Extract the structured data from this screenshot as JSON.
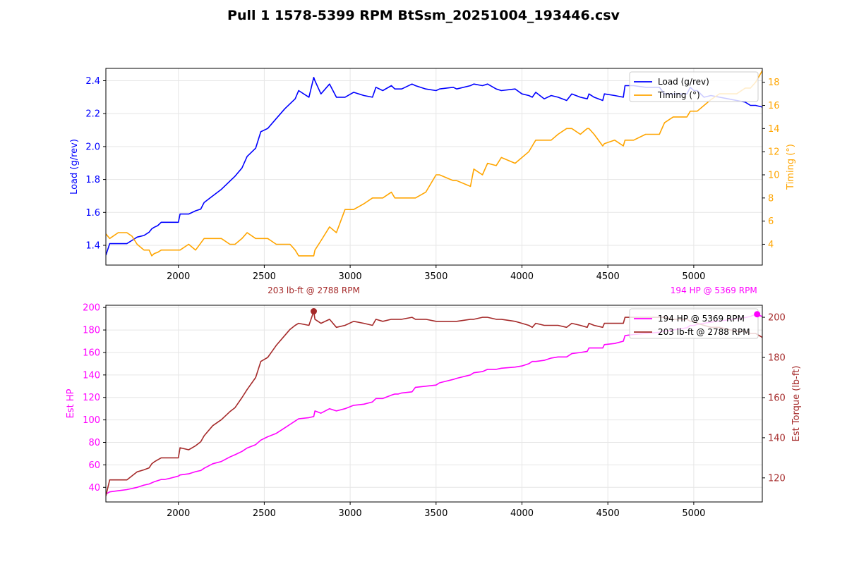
{
  "figure": {
    "title": "Pull 1 1578-5399 RPM BtSsm_20251004_193446.csv"
  },
  "colors": {
    "load": "#0000ff",
    "timing": "#ffa500",
    "hp": "#ff00ff",
    "torque": "#a52a2a",
    "grid": "#e6e6e6"
  },
  "chart_data": [
    {
      "type": "line",
      "xlim": [
        1578,
        5399
      ],
      "x_ticks": [
        2000,
        2500,
        3000,
        3500,
        4000,
        4500,
        5000
      ],
      "grid": true,
      "legend_position": "upper right",
      "left_axis": {
        "label": "Load (g/rev)",
        "ylim": [
          1.28,
          2.475
        ],
        "ticks": [
          1.4,
          1.6,
          1.8,
          2.0,
          2.2,
          2.4
        ],
        "decimals": 1
      },
      "right_axis": {
        "label": "Timing (°)",
        "ylim": [
          2.2,
          19.2
        ],
        "ticks": [
          4,
          6,
          8,
          10,
          12,
          14,
          16,
          18
        ],
        "decimals": 0
      },
      "series": [
        {
          "name": "Load (g/rev)",
          "axis": "left",
          "color": "blue",
          "x": [
            1578,
            1600,
            1650,
            1700,
            1730,
            1760,
            1800,
            1830,
            1845,
            1860,
            1880,
            1900,
            1920,
            1950,
            2000,
            2010,
            2060,
            2100,
            2130,
            2150,
            2200,
            2250,
            2300,
            2330,
            2370,
            2400,
            2450,
            2480,
            2520,
            2570,
            2620,
            2650,
            2680,
            2700,
            2760,
            2788,
            2795,
            2830,
            2880,
            2920,
            2970,
            3020,
            3080,
            3130,
            3150,
            3190,
            3240,
            3260,
            3280,
            3300,
            3360,
            3380,
            3440,
            3500,
            3520,
            3600,
            3620,
            3700,
            3720,
            3770,
            3800,
            3850,
            3880,
            3960,
            4000,
            4040,
            4060,
            4080,
            4130,
            4170,
            4210,
            4260,
            4290,
            4340,
            4380,
            4390,
            4420,
            4470,
            4480,
            4540,
            4590,
            4600,
            4650,
            4720,
            4800,
            4830,
            4880,
            4960,
            4980,
            5000,
            5020,
            5060,
            5100,
            5150,
            5200,
            5250,
            5300,
            5330,
            5360,
            5399
          ],
          "y": [
            1.34,
            1.41,
            1.41,
            1.41,
            1.43,
            1.45,
            1.46,
            1.48,
            1.5,
            1.51,
            1.52,
            1.54,
            1.54,
            1.54,
            1.54,
            1.59,
            1.59,
            1.61,
            1.62,
            1.66,
            1.7,
            1.74,
            1.79,
            1.82,
            1.87,
            1.94,
            1.99,
            2.09,
            2.11,
            2.17,
            2.23,
            2.26,
            2.29,
            2.34,
            2.3,
            2.42,
            2.4,
            2.32,
            2.38,
            2.3,
            2.3,
            2.33,
            2.31,
            2.3,
            2.36,
            2.34,
            2.37,
            2.35,
            2.35,
            2.35,
            2.38,
            2.37,
            2.35,
            2.34,
            2.35,
            2.36,
            2.35,
            2.37,
            2.38,
            2.37,
            2.38,
            2.35,
            2.34,
            2.35,
            2.32,
            2.31,
            2.3,
            2.33,
            2.29,
            2.31,
            2.3,
            2.28,
            2.32,
            2.3,
            2.29,
            2.32,
            2.3,
            2.28,
            2.32,
            2.31,
            2.3,
            2.37,
            2.37,
            2.36,
            2.36,
            2.32,
            2.32,
            2.32,
            2.36,
            2.34,
            2.34,
            2.3,
            2.31,
            2.3,
            2.29,
            2.28,
            2.27,
            2.25,
            2.25,
            2.24
          ]
        },
        {
          "name": "Timing (°)",
          "axis": "right",
          "color": "orange",
          "x": [
            1578,
            1600,
            1650,
            1700,
            1730,
            1760,
            1800,
            1830,
            1845,
            1860,
            1880,
            1900,
            1920,
            1950,
            2000,
            2010,
            2060,
            2100,
            2130,
            2150,
            2200,
            2250,
            2300,
            2330,
            2370,
            2400,
            2450,
            2480,
            2520,
            2570,
            2620,
            2650,
            2680,
            2700,
            2760,
            2788,
            2795,
            2830,
            2880,
            2920,
            2970,
            3020,
            3080,
            3130,
            3150,
            3190,
            3240,
            3260,
            3280,
            3300,
            3360,
            3380,
            3440,
            3500,
            3520,
            3600,
            3620,
            3700,
            3720,
            3770,
            3800,
            3850,
            3880,
            3960,
            4000,
            4040,
            4060,
            4080,
            4130,
            4170,
            4210,
            4260,
            4290,
            4340,
            4380,
            4390,
            4420,
            4470,
            4480,
            4540,
            4590,
            4600,
            4650,
            4720,
            4800,
            4830,
            4880,
            4960,
            4980,
            5000,
            5020,
            5060,
            5100,
            5150,
            5200,
            5250,
            5300,
            5330,
            5360,
            5399
          ],
          "y": [
            4.9,
            4.5,
            5.0,
            5.0,
            4.7,
            4.0,
            3.5,
            3.5,
            3.0,
            3.2,
            3.3,
            3.5,
            3.5,
            3.5,
            3.5,
            3.5,
            4.0,
            3.5,
            4.1,
            4.5,
            4.5,
            4.5,
            4.0,
            4.0,
            4.5,
            5.0,
            4.5,
            4.5,
            4.5,
            4.0,
            4.0,
            4.0,
            3.5,
            3.0,
            3.0,
            3.0,
            3.5,
            4.3,
            5.5,
            5.0,
            7.0,
            7.0,
            7.5,
            8.0,
            8.0,
            8.0,
            8.5,
            8.0,
            8.0,
            8.0,
            8.0,
            8.0,
            8.5,
            10.0,
            10.0,
            9.5,
            9.5,
            9.0,
            10.5,
            10.0,
            11.0,
            10.8,
            11.5,
            11.0,
            11.5,
            12.0,
            12.5,
            13.0,
            13.0,
            13.0,
            13.5,
            14.0,
            14.0,
            13.5,
            14.0,
            14.0,
            13.5,
            12.5,
            12.7,
            13.0,
            12.5,
            13.0,
            13.0,
            13.5,
            13.5,
            14.5,
            15.0,
            15.0,
            15.5,
            15.5,
            15.5,
            16.0,
            16.5,
            17.0,
            17.0,
            17.0,
            17.5,
            17.5,
            18.0,
            19.0
          ]
        }
      ]
    },
    {
      "type": "line",
      "xlim": [
        1578,
        5399
      ],
      "x_ticks": [
        2000,
        2500,
        3000,
        3500,
        4000,
        4500,
        5000
      ],
      "grid": true,
      "legend_position": "upper right",
      "left_axis": {
        "label": "Est HP",
        "ylim": [
          27,
          202
        ],
        "ticks": [
          40,
          60,
          80,
          100,
          120,
          140,
          160,
          180,
          200
        ],
        "decimals": 0
      },
      "right_axis": {
        "label": "Est Torque (lb-ft)",
        "ylim": [
          108,
          206
        ],
        "ticks": [
          120,
          140,
          160,
          180,
          200
        ],
        "decimals": 0
      },
      "series": [
        {
          "name": "194 HP @ 5369 RPM",
          "axis": "left",
          "color": "magenta",
          "x": [
            1578,
            1600,
            1650,
            1700,
            1730,
            1760,
            1800,
            1830,
            1845,
            1860,
            1880,
            1900,
            1920,
            1950,
            2000,
            2010,
            2060,
            2100,
            2130,
            2150,
            2200,
            2250,
            2300,
            2330,
            2370,
            2400,
            2450,
            2480,
            2520,
            2570,
            2620,
            2650,
            2680,
            2700,
            2760,
            2788,
            2795,
            2830,
            2880,
            2920,
            2970,
            3020,
            3080,
            3130,
            3150,
            3190,
            3240,
            3260,
            3280,
            3300,
            3360,
            3380,
            3440,
            3500,
            3520,
            3600,
            3620,
            3700,
            3720,
            3770,
            3800,
            3850,
            3880,
            3960,
            4000,
            4040,
            4060,
            4080,
            4130,
            4170,
            4210,
            4260,
            4290,
            4340,
            4380,
            4390,
            4420,
            4470,
            4480,
            4540,
            4590,
            4600,
            4650,
            4720,
            4800,
            4830,
            4880,
            4960,
            4980,
            5000,
            5020,
            5060,
            5100,
            5150,
            5200,
            5250,
            5300,
            5330,
            5360,
            5399
          ],
          "y": [
            34,
            36,
            37,
            38,
            39,
            40,
            42,
            43,
            44,
            45,
            46,
            47,
            47,
            48,
            50,
            51,
            52,
            54,
            55,
            57,
            61,
            63,
            67,
            69,
            72,
            75,
            78,
            82,
            85,
            88,
            93,
            96,
            99,
            101,
            102,
            103,
            108,
            106,
            110,
            108,
            110,
            113,
            114,
            116,
            119,
            119,
            122,
            123,
            123,
            124,
            125,
            129,
            130,
            131,
            133,
            136,
            137,
            140,
            142,
            143,
            145,
            145,
            146,
            147,
            148,
            150,
            152,
            152,
            153,
            155,
            156,
            156,
            159,
            160,
            161,
            164,
            164,
            164,
            167,
            168,
            170,
            175,
            176,
            177,
            178,
            179,
            180,
            182,
            184,
            184,
            185,
            186,
            187,
            188,
            189,
            190,
            191,
            192,
            194,
            192
          ]
        },
        {
          "name": "203 lb-ft @ 2788 RPM",
          "axis": "right",
          "color": "brown",
          "x": [
            1578,
            1600,
            1650,
            1700,
            1730,
            1760,
            1800,
            1830,
            1845,
            1860,
            1880,
            1900,
            1920,
            1950,
            2000,
            2010,
            2060,
            2100,
            2130,
            2150,
            2200,
            2250,
            2300,
            2330,
            2370,
            2400,
            2450,
            2480,
            2520,
            2570,
            2620,
            2650,
            2680,
            2700,
            2760,
            2788,
            2795,
            2830,
            2880,
            2920,
            2970,
            3020,
            3080,
            3130,
            3150,
            3190,
            3240,
            3260,
            3280,
            3300,
            3360,
            3380,
            3440,
            3500,
            3520,
            3600,
            3620,
            3700,
            3720,
            3770,
            3800,
            3850,
            3880,
            3960,
            4000,
            4040,
            4060,
            4080,
            4130,
            4170,
            4210,
            4260,
            4290,
            4340,
            4380,
            4390,
            4420,
            4470,
            4480,
            4540,
            4590,
            4600,
            4650,
            4720,
            4800,
            4830,
            4880,
            4960,
            4980,
            5000,
            5020,
            5060,
            5100,
            5150,
            5200,
            5250,
            5300,
            5330,
            5360,
            5399
          ],
          "y": [
            111,
            119,
            119,
            119,
            121,
            123,
            124,
            125,
            127,
            128,
            129,
            130,
            130,
            130,
            130,
            135,
            134,
            136,
            138,
            141,
            146,
            149,
            153,
            155,
            160,
            164,
            170,
            178,
            180,
            186,
            191,
            194,
            196,
            197,
            196,
            203,
            199,
            197,
            199,
            195,
            196,
            198,
            197,
            196,
            199,
            198,
            199,
            199,
            199,
            199,
            200,
            199,
            199,
            198,
            198,
            198,
            198,
            199,
            199,
            200,
            200,
            199,
            199,
            198,
            197,
            196,
            195,
            197,
            196,
            196,
            196,
            195,
            197,
            196,
            195,
            197,
            196,
            195,
            197,
            197,
            197,
            200,
            200,
            200,
            200,
            200,
            199,
            199,
            198,
            198,
            197,
            196,
            195,
            195,
            194,
            193,
            193,
            192,
            192,
            190
          ]
        }
      ],
      "annotations": [
        {
          "text": "203 lb-ft @ 2788 RPM",
          "x": 2788,
          "y": 203,
          "series": "torque",
          "color": "brown"
        },
        {
          "text": "194 HP @ 5369 RPM",
          "x": 5369,
          "y": 194,
          "series": "hp",
          "color": "magenta"
        }
      ]
    }
  ]
}
